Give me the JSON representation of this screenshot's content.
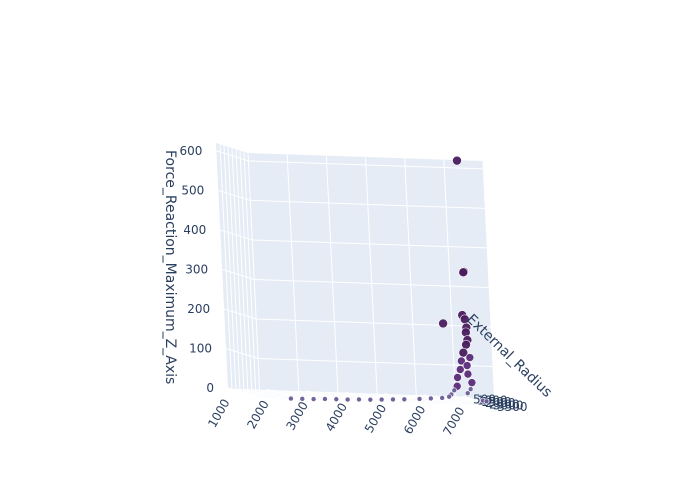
{
  "chart_data": {
    "type": "scatter",
    "subtype": "3d",
    "title": "",
    "axes": {
      "x": {
        "label": "",
        "ticks": [
          "1000",
          "2000",
          "3000",
          "4000",
          "5000",
          "6000",
          "7000"
        ]
      },
      "y": {
        "label": "External_Radius",
        "ticks": [
          "500",
          "1000",
          "1500",
          "2000",
          "2500",
          "3000",
          "3500"
        ]
      },
      "z": {
        "label": "Force_Reaction_Maximum_Z_Axis",
        "ticks": [
          "0",
          "100",
          "200",
          "300",
          "400",
          "500",
          "600"
        ],
        "range": [
          0,
          620
        ]
      }
    },
    "grid": true,
    "colors": {
      "pane": "#e5ecf6",
      "grid": "#ffffff",
      "marker_dark": "#4a1d5e",
      "marker_mid": "#5b2c7a",
      "marker_light": "#6b5b95",
      "axis_text": "#2a3f5f"
    },
    "points": [
      {
        "x": 7000,
        "y": 700,
        "z": 600
      },
      {
        "x": 7000,
        "y": 900,
        "z": 320
      },
      {
        "x": 7000,
        "y": 800,
        "z": 318
      },
      {
        "x": 6900,
        "y": 900,
        "z": 210
      },
      {
        "x": 6950,
        "y": 950,
        "z": 200
      },
      {
        "x": 6300,
        "y": 1400,
        "z": 190
      },
      {
        "x": 6950,
        "y": 1100,
        "z": 180
      },
      {
        "x": 6850,
        "y": 1500,
        "z": 170
      },
      {
        "x": 6900,
        "y": 1400,
        "z": 150
      },
      {
        "x": 6800,
        "y": 1700,
        "z": 140
      },
      {
        "x": 6700,
        "y": 1800,
        "z": 120
      },
      {
        "x": 6800,
        "y": 2100,
        "z": 110
      },
      {
        "x": 6600,
        "y": 2000,
        "z": 100
      },
      {
        "x": 6700,
        "y": 2200,
        "z": 90
      },
      {
        "x": 6500,
        "y": 2300,
        "z": 80
      },
      {
        "x": 6650,
        "y": 2500,
        "z": 70
      },
      {
        "x": 6400,
        "y": 2400,
        "z": 60
      },
      {
        "x": 6700,
        "y": 2700,
        "z": 50
      },
      {
        "x": 6300,
        "y": 2800,
        "z": 40
      },
      {
        "x": 6600,
        "y": 3000,
        "z": 35
      },
      {
        "x": 6200,
        "y": 2900,
        "z": 30
      },
      {
        "x": 6500,
        "y": 3100,
        "z": 25
      },
      {
        "x": 6100,
        "y": 3000,
        "z": 20
      },
      {
        "x": 6000,
        "y": 3200,
        "z": 15
      },
      {
        "x": 6800,
        "y": 3500,
        "z": 10
      },
      {
        "x": 6900,
        "y": 3450,
        "z": 8
      },
      {
        "x": 5800,
        "y": 3300,
        "z": 12
      },
      {
        "x": 5500,
        "y": 3350,
        "z": 10
      },
      {
        "x": 5200,
        "y": 3400,
        "z": 8
      },
      {
        "x": 4800,
        "y": 3450,
        "z": 6
      },
      {
        "x": 4500,
        "y": 3500,
        "z": 5
      },
      {
        "x": 4200,
        "y": 3550,
        "z": 4
      },
      {
        "x": 3900,
        "y": 3600,
        "z": 3
      },
      {
        "x": 3600,
        "y": 3650,
        "z": 3
      },
      {
        "x": 3300,
        "y": 3700,
        "z": 2
      },
      {
        "x": 3000,
        "y": 3750,
        "z": 2
      },
      {
        "x": 2700,
        "y": 3800,
        "z": 2
      },
      {
        "x": 2400,
        "y": 3850,
        "z": 1
      },
      {
        "x": 2100,
        "y": 3900,
        "z": 1
      },
      {
        "x": 1800,
        "y": 3950,
        "z": 1
      }
    ]
  }
}
